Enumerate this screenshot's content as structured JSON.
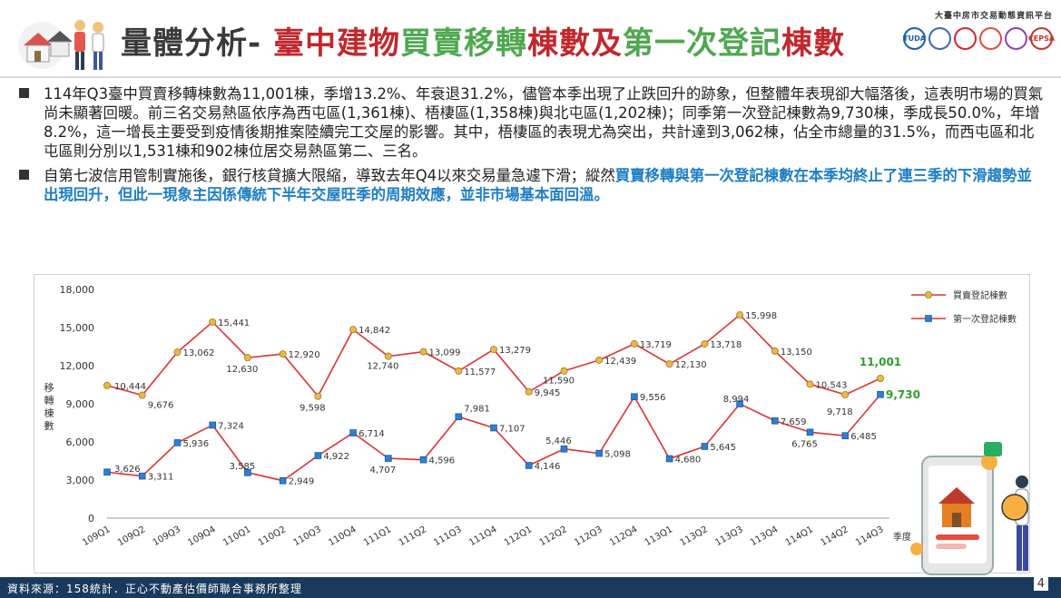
{
  "header": {
    "title_part1": "量體分析-",
    "title_part2": "臺中建物",
    "title_part3": "買賣移轉",
    "title_part4": "棟數及",
    "title_part5": "第一次登記",
    "title_part6": "棟數",
    "brand_text": "大臺中房市交易動態資訊平台",
    "brand_logos": [
      "TUDA",
      "",
      "",
      "",
      "",
      "CEPSA"
    ]
  },
  "bullets": [
    {
      "text": "114年Q3臺中買賣移轉棟數為11,001棟，季增13.2%、年衰退31.2%，儘管本季出現了止跌回升的跡象，但整體年表現卻大幅落後，這表明市場的買氣尚未顯著回暖。前三名交易熱區依序為西屯區(1,361棟)、梧棲區(1,358棟)與北屯區(1,202棟)；同季第一次登記棟數為9,730棟，季成長50.0%，年增8.2%，這一增長主要受到疫情後期推案陸續完工交屋的影響。其中，梧棲區的表現尤為突出，共計達到3,062棟，佔全市總量的31.5%，而西屯區和北屯區則分別以1,531棟和902棟位居交易熱區第二、三名。"
    },
    {
      "text": "自第七波信用管制實施後，銀行核貸擴大限縮，導致去年Q4以來交易量急遽下滑；縱然",
      "highlight": "買賣移轉與第一次登記棟數在本季均終止了連三季的下滑趨勢並出現回升，但此一現象主因係傳統下半年交屋旺季的周期效應，並非市場基本面回溫。"
    }
  ],
  "chart_data": {
    "type": "line",
    "categories": [
      "109Q1",
      "109Q2",
      "109Q3",
      "109Q4",
      "110Q1",
      "110Q2",
      "110Q3",
      "110Q4",
      "111Q1",
      "111Q2",
      "111Q3",
      "111Q4",
      "112Q1",
      "112Q2",
      "112Q3",
      "112Q4",
      "113Q1",
      "113Q2",
      "113Q3",
      "113Q4",
      "114Q1",
      "114Q2",
      "114Q3"
    ],
    "series": [
      {
        "name": "買賣登記棟數",
        "color": "#e03030",
        "marker_color": "#e8b84a",
        "marker": "circle",
        "values": [
          10444,
          9676,
          13062,
          15441,
          12630,
          12920,
          9598,
          14842,
          12740,
          13099,
          11577,
          13279,
          9945,
          11590,
          12439,
          13719,
          12130,
          13718,
          15998,
          13150,
          10543,
          9718,
          11001
        ],
        "labels": [
          "10,444",
          "9,676",
          "13,062",
          "15,441",
          "12,630",
          "12,920",
          "9,598",
          "14,842",
          "12,740",
          "13,099",
          "11,577",
          "13,279",
          "9,945",
          "11,590",
          "12,439",
          "13,719",
          "12,130",
          "13,718",
          "15,998",
          "13,150",
          "10,543",
          "9,718",
          "11,001"
        ]
      },
      {
        "name": "第一次登記棟數",
        "color": "#e03030",
        "marker_color": "#2d7fd3",
        "marker": "square",
        "values": [
          3626,
          3311,
          5936,
          7324,
          3585,
          2949,
          4922,
          6714,
          4707,
          4596,
          7981,
          7107,
          4146,
          5446,
          5098,
          9556,
          4680,
          5645,
          8994,
          7659,
          6765,
          6485,
          9730
        ],
        "labels": [
          "3,626",
          "3,311",
          "5,936",
          "7,324",
          "3,585",
          "2,949",
          "4,922",
          "6,714",
          "4,707",
          "4,596",
          "7,981",
          "7,107",
          "4,146",
          "5,446",
          "5,098",
          "9,556",
          "4,680",
          "5,645",
          "8,994",
          "7,659",
          "6,765",
          "6,485",
          "9,730"
        ]
      }
    ],
    "ylabel": "移轉棟數",
    "xlabel": "季度",
    "ylim": [
      0,
      18000
    ],
    "yticks": [
      0,
      3000,
      6000,
      9000,
      12000,
      15000,
      18000
    ],
    "ytick_labels": [
      "0",
      "3,000",
      "6,000",
      "9,000",
      "12,000",
      "15,000",
      "18,000"
    ],
    "legend_position": "top-right",
    "highlight_last_color": "#2e9e2e",
    "grid": false
  },
  "footer": {
    "source": "資料來源：158統計．正心不動產估價師聯合事務所整理",
    "page": "4"
  }
}
